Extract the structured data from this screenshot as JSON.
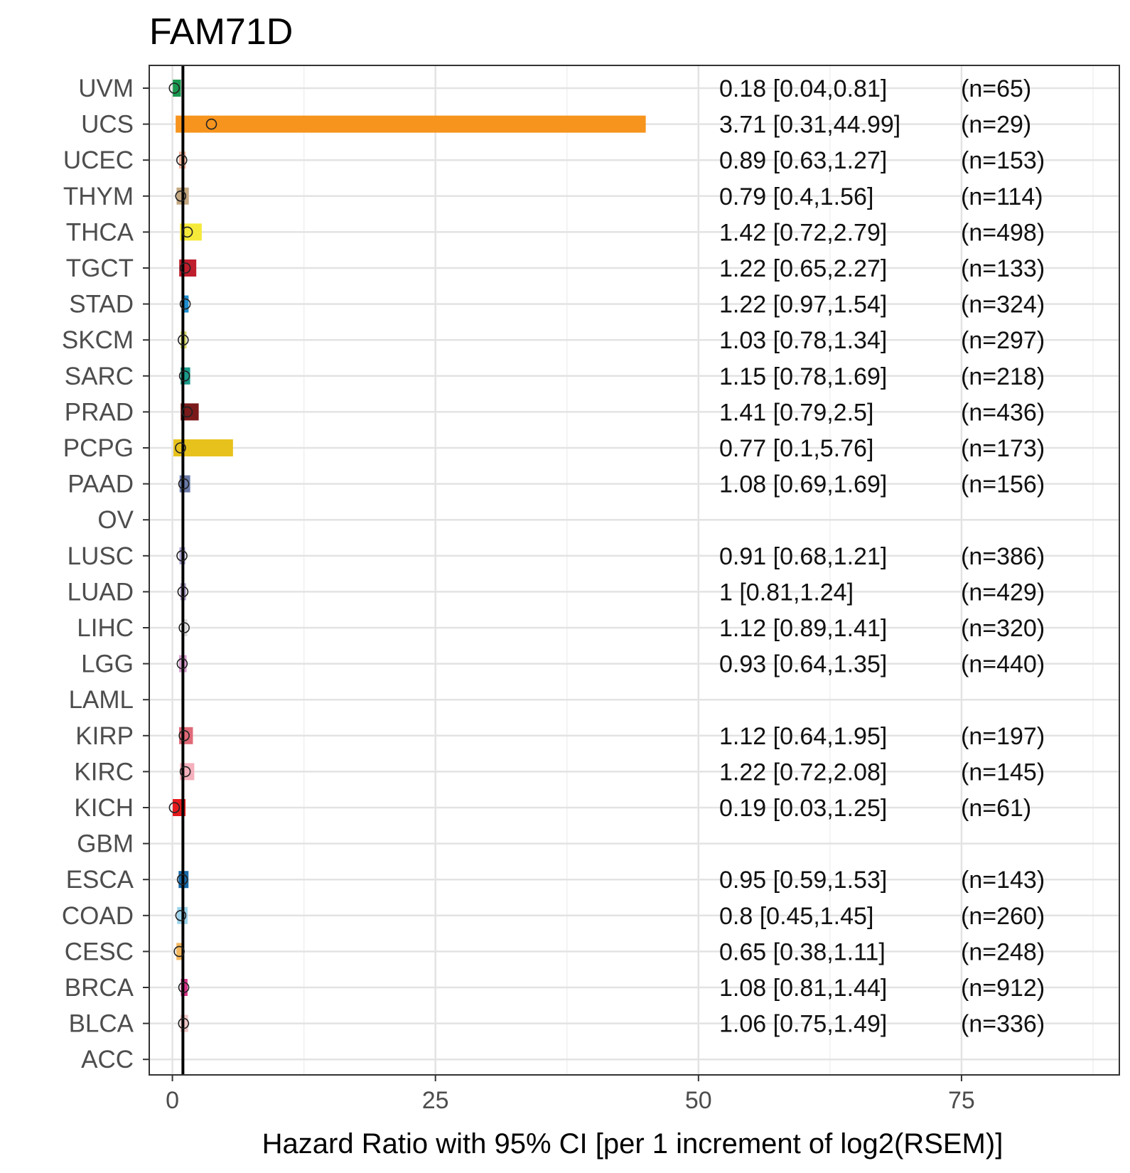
{
  "chart_data": {
    "type": "forest",
    "title": "FAM71D",
    "xlabel": "Hazard Ratio with 95% CI [per 1 increment of log2(RSEM)]",
    "ylabel": "",
    "xlim": [
      -2.2,
      90
    ],
    "x_ticks": [
      "0",
      "25",
      "50",
      "75"
    ],
    "x_tick_values": [
      0,
      25,
      50,
      75
    ],
    "reference_line": 1,
    "rows": [
      {
        "cancer": "UVM",
        "hr": 0.18,
        "lower": 0.04,
        "upper": 0.81,
        "label": "0.18 [0.04,0.81]",
        "n": "(n=65)",
        "color": "#1a9850"
      },
      {
        "cancer": "UCS",
        "hr": 3.71,
        "lower": 0.31,
        "upper": 44.99,
        "label": "3.71 [0.31,44.99]",
        "n": "(n=29)",
        "color": "#f7941d"
      },
      {
        "cancer": "UCEC",
        "hr": 0.89,
        "lower": 0.63,
        "upper": 1.27,
        "label": "0.89 [0.63,1.27]",
        "n": "(n=153)",
        "color": "#f4b8a0"
      },
      {
        "cancer": "THYM",
        "hr": 0.79,
        "lower": 0.4,
        "upper": 1.56,
        "label": "0.79 [0.4,1.56]",
        "n": "(n=114)",
        "color": "#c4a882"
      },
      {
        "cancer": "THCA",
        "hr": 1.42,
        "lower": 0.72,
        "upper": 2.79,
        "label": "1.42 [0.72,2.79]",
        "n": "(n=498)",
        "color": "#f5ea3a"
      },
      {
        "cancer": "TGCT",
        "hr": 1.22,
        "lower": 0.65,
        "upper": 2.27,
        "label": "1.22 [0.65,2.27]",
        "n": "(n=133)",
        "color": "#be1e2d"
      },
      {
        "cancer": "STAD",
        "hr": 1.22,
        "lower": 0.97,
        "upper": 1.54,
        "label": "1.22 [0.97,1.54]",
        "n": "(n=324)",
        "color": "#1f8ecf"
      },
      {
        "cancer": "SKCM",
        "hr": 1.03,
        "lower": 0.78,
        "upper": 1.34,
        "label": "1.03 [0.78,1.34]",
        "n": "(n=297)",
        "color": "#d4d66a"
      },
      {
        "cancer": "SARC",
        "hr": 1.15,
        "lower": 0.78,
        "upper": 1.69,
        "label": "1.15 [0.78,1.69]",
        "n": "(n=218)",
        "color": "#1a9a8a"
      },
      {
        "cancer": "PRAD",
        "hr": 1.41,
        "lower": 0.79,
        "upper": 2.5,
        "label": "1.41 [0.79,2.5]",
        "n": "(n=436)",
        "color": "#7a1a1a"
      },
      {
        "cancer": "PCPG",
        "hr": 0.77,
        "lower": 0.1,
        "upper": 5.76,
        "label": "0.77 [0.1,5.76]",
        "n": "(n=173)",
        "color": "#e8c21c"
      },
      {
        "cancer": "PAAD",
        "hr": 1.08,
        "lower": 0.69,
        "upper": 1.69,
        "label": "1.08 [0.69,1.69]",
        "n": "(n=156)",
        "color": "#6a7aa8"
      },
      {
        "cancer": "OV",
        "hr": null,
        "lower": null,
        "upper": null,
        "label": "",
        "n": "",
        "color": "#999999"
      },
      {
        "cancer": "LUSC",
        "hr": 0.91,
        "lower": 0.68,
        "upper": 1.21,
        "label": "0.91 [0.68,1.21]",
        "n": "(n=386)",
        "color": "#a8a0d0"
      },
      {
        "cancer": "LUAD",
        "hr": 1,
        "lower": 0.81,
        "upper": 1.24,
        "label": "1 [0.81,1.24]",
        "n": "(n=429)",
        "color": "#b0a0c8"
      },
      {
        "cancer": "LIHC",
        "hr": 1.12,
        "lower": 0.89,
        "upper": 1.41,
        "label": "1.12 [0.89,1.41]",
        "n": "(n=320)",
        "color": "#dddddd"
      },
      {
        "cancer": "LGG",
        "hr": 0.93,
        "lower": 0.64,
        "upper": 1.35,
        "label": "0.93 [0.64,1.35]",
        "n": "(n=440)",
        "color": "#d8a0d0"
      },
      {
        "cancer": "LAML",
        "hr": null,
        "lower": null,
        "upper": null,
        "label": "",
        "n": "",
        "color": "#999999"
      },
      {
        "cancer": "KIRP",
        "hr": 1.12,
        "lower": 0.64,
        "upper": 1.95,
        "label": "1.12 [0.64,1.95]",
        "n": "(n=197)",
        "color": "#e06a78"
      },
      {
        "cancer": "KIRC",
        "hr": 1.22,
        "lower": 0.72,
        "upper": 2.08,
        "label": "1.22 [0.72,2.08]",
        "n": "(n=145)",
        "color": "#f4b0bc"
      },
      {
        "cancer": "KICH",
        "hr": 0.19,
        "lower": 0.03,
        "upper": 1.25,
        "label": "0.19 [0.03,1.25]",
        "n": "(n=61)",
        "color": "#e41a1c"
      },
      {
        "cancer": "GBM",
        "hr": null,
        "lower": null,
        "upper": null,
        "label": "",
        "n": "",
        "color": "#999999"
      },
      {
        "cancer": "ESCA",
        "hr": 0.95,
        "lower": 0.59,
        "upper": 1.53,
        "label": "0.95 [0.59,1.53]",
        "n": "(n=143)",
        "color": "#1a6aa8"
      },
      {
        "cancer": "COAD",
        "hr": 0.8,
        "lower": 0.45,
        "upper": 1.45,
        "label": "0.8 [0.45,1.45]",
        "n": "(n=260)",
        "color": "#9ed4ec"
      },
      {
        "cancer": "CESC",
        "hr": 0.65,
        "lower": 0.38,
        "upper": 1.11,
        "label": "0.65 [0.38,1.11]",
        "n": "(n=248)",
        "color": "#f4b860"
      },
      {
        "cancer": "BRCA",
        "hr": 1.08,
        "lower": 0.81,
        "upper": 1.44,
        "label": "1.08 [0.81,1.44]",
        "n": "(n=912)",
        "color": "#d6338a"
      },
      {
        "cancer": "BLCA",
        "hr": 1.06,
        "lower": 0.75,
        "upper": 1.49,
        "label": "1.06 [0.75,1.49]",
        "n": "(n=336)",
        "color": "#f0c8c8"
      },
      {
        "cancer": "ACC",
        "hr": null,
        "lower": null,
        "upper": null,
        "label": "",
        "n": "",
        "color": "#999999"
      }
    ]
  }
}
